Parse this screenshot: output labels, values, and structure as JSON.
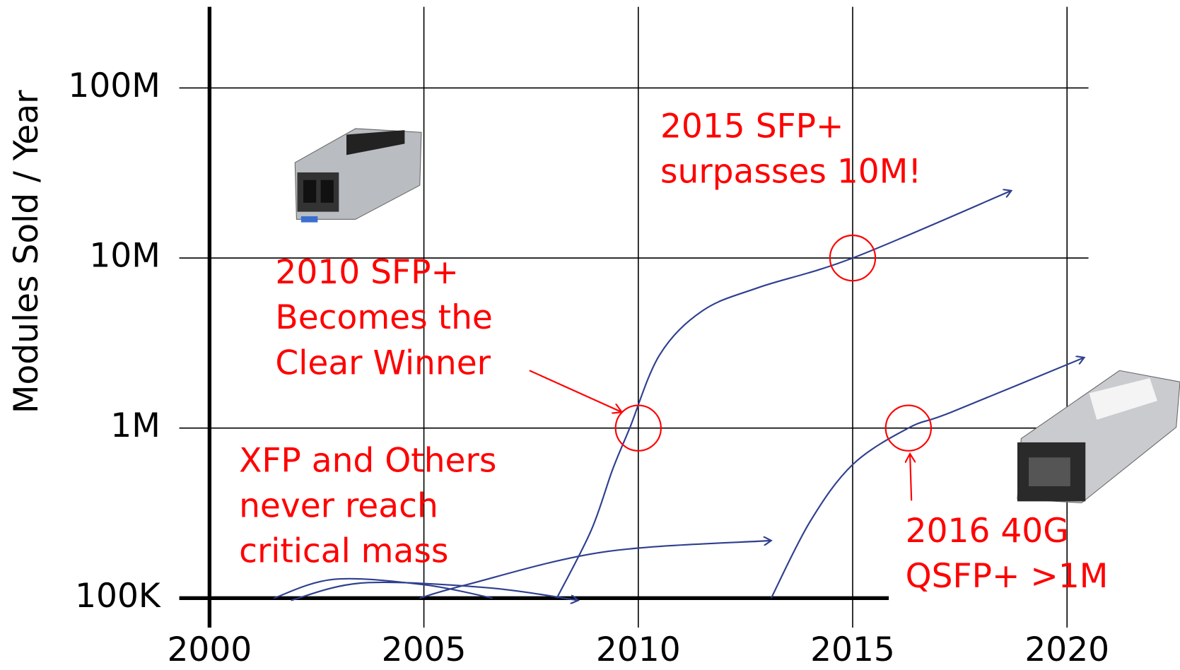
{
  "chart_data": {
    "type": "line",
    "y_label": "Modules Sold / Year",
    "log_y": true,
    "grid": true,
    "xlim": [
      2000,
      2020.5
    ],
    "xticks": [
      2000,
      2005,
      2010,
      2015,
      2020
    ],
    "ylim": [
      100000,
      300000000
    ],
    "yticks": [
      {
        "value": 100000,
        "label": "100K"
      },
      {
        "value": 1000000,
        "label": "1M"
      },
      {
        "value": 10000000,
        "label": "10M"
      },
      {
        "value": 100000000,
        "label": "100M"
      }
    ],
    "series": [
      {
        "color": "#2e3f8f",
        "arrow": true,
        "x": [
          2008.1,
          2008.9,
          2009.4,
          2009.8,
          2010.5,
          2011.5,
          2012.8,
          2015,
          2018.7
        ],
        "values": [
          100000,
          250000,
          570000,
          1000000,
          2700000,
          4900000,
          6700000,
          10000000,
          24900000
        ]
      },
      {
        "color": "#2e3f8f",
        "arrow": true,
        "x": [
          2013.1,
          2014,
          2015,
          2016.3,
          2017.3,
          2020.4
        ],
        "values": [
          100000,
          280000,
          610000,
          1000000,
          1240000,
          2600000
        ]
      },
      {
        "color": "#2e3f8f",
        "arrow": false,
        "x": [
          2001.5,
          2002.9,
          2005,
          2006.6
        ],
        "values": [
          100000,
          129000,
          120000,
          100000
        ]
      },
      {
        "color": "#2e3f8f",
        "arrow": true,
        "x": [
          2001.9,
          2003.6,
          2006.5,
          2008.6
        ],
        "values": [
          97000,
          123000,
          115000,
          97000
        ]
      },
      {
        "color": "#2e3f8f",
        "arrow": true,
        "x": [
          2004.9,
          2006,
          2009.2,
          2013.1
        ],
        "values": [
          100000,
          120000,
          187000,
          218000
        ]
      }
    ],
    "highlights": [
      {
        "x": 2010,
        "y": 1000000
      },
      {
        "x": 2015,
        "y": 10000000
      },
      {
        "x": 2016.3,
        "y": 1000000
      }
    ],
    "annotation_color": "#ff0000",
    "annotations": [
      {
        "lines": [
          "2015 SFP+",
          "surpasses 10M!"
        ]
      },
      {
        "lines": [
          "2010 SFP+",
          "Becomes the",
          "Clear Winner"
        ]
      },
      {
        "lines": [
          "XFP and Others",
          "never reach",
          "critical mass"
        ]
      },
      {
        "lines": [
          "2016 40G",
          "QSFP+ >1M"
        ]
      }
    ]
  }
}
